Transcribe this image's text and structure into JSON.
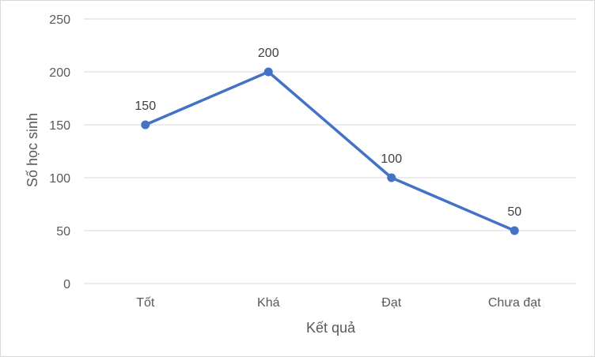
{
  "chart_data": {
    "type": "line",
    "title": "",
    "xlabel": "Kết quả",
    "ylabel": "Số học sinh",
    "categories": [
      "Tốt",
      "Khá",
      "Đạt",
      "Chưa đạt"
    ],
    "series": [
      {
        "values": [
          150,
          200,
          100,
          50
        ]
      }
    ],
    "ylim": [
      0,
      250
    ],
    "yticks": [
      0,
      50,
      100,
      150,
      200,
      250
    ],
    "data_labels": [
      "150",
      "200",
      "100",
      "50"
    ],
    "grid": true,
    "legend": "none",
    "colors": {
      "line": "#4472c4",
      "grid": "#d9d9d9"
    }
  }
}
